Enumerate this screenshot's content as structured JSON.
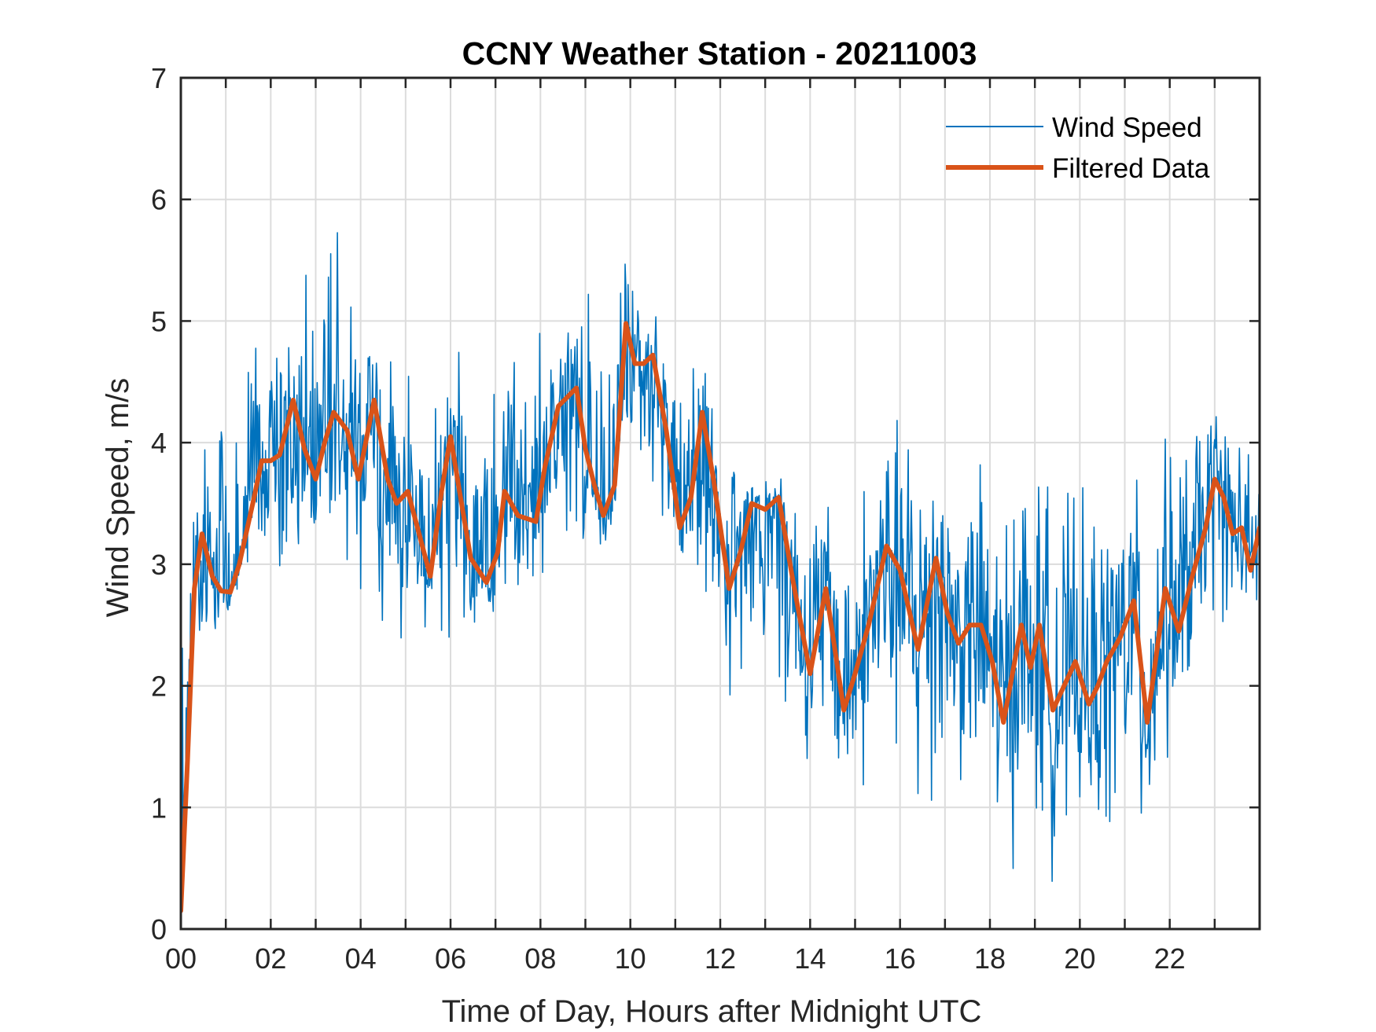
{
  "chart_data": {
    "type": "line",
    "title": "CCNY Weather Station - 20211003",
    "xlabel": "Time of Day, Hours after Midnight UTC",
    "ylabel": "Wind Speed, m/s",
    "xlim": [
      0,
      24
    ],
    "ylim": [
      0,
      7
    ],
    "xticks": [
      0,
      1,
      2,
      3,
      4,
      5,
      6,
      7,
      8,
      9,
      10,
      11,
      12,
      13,
      14,
      15,
      16,
      17,
      18,
      19,
      20,
      21,
      22,
      23
    ],
    "xtick_labels": [
      "00",
      "02",
      "04",
      "06",
      "08",
      "10",
      "12",
      "14",
      "16",
      "18",
      "20",
      "22"
    ],
    "xtick_label_values": [
      0,
      2,
      4,
      6,
      8,
      10,
      12,
      14,
      16,
      18,
      20,
      22
    ],
    "yticks": [
      0,
      1,
      2,
      3,
      4,
      5,
      6,
      7
    ],
    "ytick_labels": [
      "0",
      "1",
      "2",
      "3",
      "4",
      "5",
      "6",
      "7"
    ],
    "grid": true,
    "legend": {
      "position": "top-right",
      "entries": [
        "Wind Speed",
        "Filtered Data"
      ]
    },
    "series": [
      {
        "name": "Wind Speed",
        "color": "#0072BD",
        "style": "thin-line",
        "description": "High-frequency raw wind speed; envelope approx. 1.5 m/s around filtered curve, peak ~6.1 m/s near 03:20, minima ~0.3 m/s near 19:30",
        "anchor_x": [
          0.0,
          0.3,
          1.5,
          2.3,
          3.3,
          4.0,
          5.6,
          6.1,
          7.9,
          9.6,
          9.9,
          11.6,
          12.1,
          14.0,
          14.7,
          16.8,
          17.0,
          18.2,
          19.3,
          20.0,
          21.3,
          21.4,
          22.7,
          23.0,
          24.0
        ],
        "anchor_max": [
          3.9,
          3.9,
          5.6,
          5.4,
          6.1,
          5.4,
          4.6,
          4.9,
          5.1,
          5.55,
          5.6,
          4.9,
          4.0,
          3.9,
          3.7,
          4.75,
          4.0,
          4.0,
          4.05,
          3.7,
          3.9,
          3.9,
          4.6,
          4.6,
          3.9
        ],
        "anchor_min": [
          0.15,
          2.1,
          2.8,
          2.5,
          3.2,
          2.2,
          2.4,
          2.1,
          2.6,
          3.2,
          3.6,
          2.7,
          1.8,
          1.3,
          1.1,
          0.55,
          1.2,
          0.5,
          0.3,
          0.6,
          0.4,
          0.45,
          2.2,
          2.4,
          2.4
        ]
      },
      {
        "name": "Filtered Data",
        "color": "#D95319",
        "style": "thick-line",
        "x": [
          0.0,
          0.15,
          0.3,
          0.47,
          0.7,
          0.9,
          1.1,
          1.3,
          1.6,
          1.8,
          2.0,
          2.2,
          2.5,
          2.75,
          3.0,
          3.2,
          3.4,
          3.7,
          3.95,
          4.3,
          4.6,
          4.8,
          5.05,
          5.3,
          5.55,
          5.8,
          6.0,
          6.2,
          6.45,
          6.8,
          7.05,
          7.2,
          7.5,
          7.9,
          8.1,
          8.4,
          8.8,
          9.0,
          9.2,
          9.4,
          9.65,
          9.9,
          10.1,
          10.3,
          10.5,
          10.8,
          11.1,
          11.35,
          11.6,
          11.85,
          12.2,
          12.45,
          12.7,
          13.0,
          13.3,
          13.6,
          13.8,
          14.0,
          14.35,
          14.55,
          14.75,
          15.0,
          15.3,
          15.7,
          16.0,
          16.4,
          16.8,
          17.05,
          17.3,
          17.55,
          17.8,
          18.05,
          18.3,
          18.5,
          18.7,
          18.9,
          19.1,
          19.4,
          19.65,
          19.9,
          20.2,
          20.4,
          20.6,
          20.9,
          21.2,
          21.5,
          21.9,
          22.2,
          22.5,
          22.8,
          23.0,
          23.2,
          23.4,
          23.6,
          23.8,
          24.0
        ],
        "y": [
          0.15,
          1.4,
          2.8,
          3.25,
          2.9,
          2.78,
          2.77,
          3.0,
          3.5,
          3.85,
          3.85,
          3.9,
          4.35,
          3.95,
          3.7,
          4.0,
          4.25,
          4.1,
          3.7,
          4.35,
          3.7,
          3.5,
          3.6,
          3.25,
          2.9,
          3.6,
          4.05,
          3.6,
          3.05,
          2.85,
          3.1,
          3.6,
          3.4,
          3.35,
          3.8,
          4.3,
          4.45,
          3.95,
          3.65,
          3.4,
          3.65,
          4.98,
          4.65,
          4.65,
          4.72,
          4.1,
          3.3,
          3.55,
          4.25,
          3.7,
          2.8,
          3.1,
          3.5,
          3.45,
          3.55,
          2.9,
          2.5,
          2.1,
          2.8,
          2.3,
          1.8,
          2.1,
          2.5,
          3.15,
          2.95,
          2.3,
          3.05,
          2.6,
          2.35,
          2.5,
          2.5,
          2.2,
          1.7,
          2.1,
          2.5,
          2.15,
          2.5,
          1.8,
          2.0,
          2.2,
          1.85,
          2.0,
          2.2,
          2.4,
          2.7,
          1.7,
          2.8,
          2.45,
          2.9,
          3.3,
          3.7,
          3.55,
          3.25,
          3.3,
          2.95,
          3.3
        ]
      }
    ]
  }
}
